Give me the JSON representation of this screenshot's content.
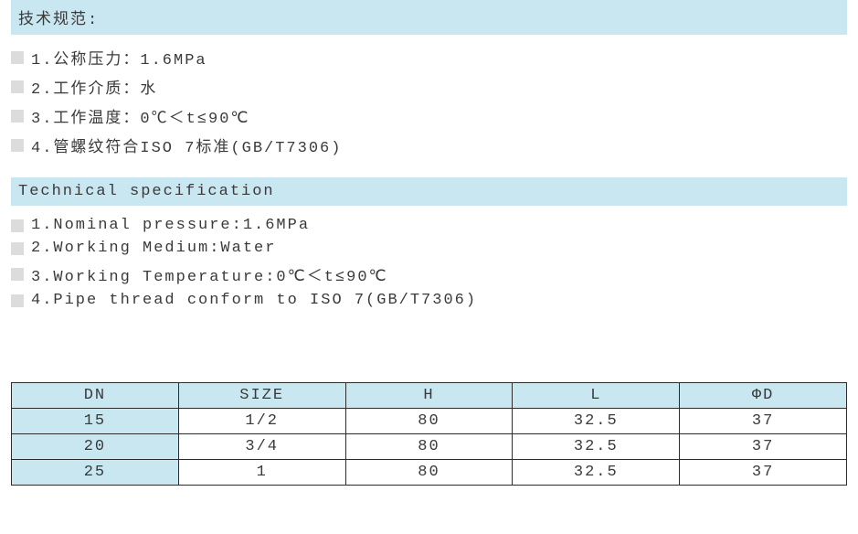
{
  "specs_cn": {
    "heading": "技术规范:",
    "items": [
      "1.公称压力：1.6MPa",
      "2.工作介质：水",
      "3.工作温度：0℃＜t≤90℃",
      "4.管螺纹符合ISO 7标准(GB/T7306)"
    ]
  },
  "specs_en": {
    "heading": "Technical specification",
    "items": [
      "1.Nominal pressure:1.6MPa",
      "2.Working Medium:Water",
      "3.Working Temperature:0℃＜t≤90℃",
      "4.Pipe thread conform to ISO 7(GB/T7306)"
    ]
  },
  "table": {
    "columns": [
      "DN",
      "SIZE",
      "H",
      "L",
      "ΦD"
    ],
    "rows": [
      [
        "15",
        "1/2",
        "80",
        "32.5",
        "37"
      ],
      [
        "20",
        "3/4",
        "80",
        "32.5",
        "37"
      ],
      [
        "25",
        "1",
        "80",
        "32.5",
        "37"
      ]
    ],
    "header_bg": "#c9e7f0",
    "first_col_bg": "#c9e7f0",
    "border_color": "#2c2c2c",
    "text_color": "#3a3a3a",
    "font_size": 17
  },
  "colors": {
    "header_bg": "#c9e7f0",
    "bullet_bg": "#dcdcdc",
    "text": "#3a3a3a",
    "background": "#ffffff"
  }
}
